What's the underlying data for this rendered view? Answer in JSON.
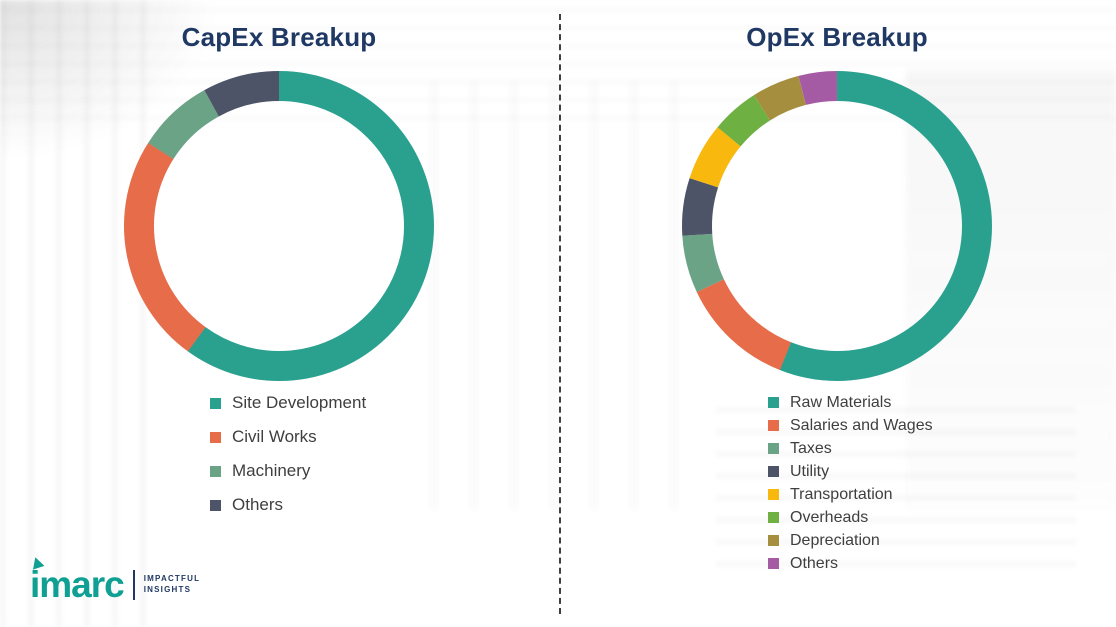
{
  "page": {
    "left_title": "CapEx Breakup",
    "right_title": "OpEx Breakup"
  },
  "chart_data": [
    {
      "type": "pie",
      "donut": true,
      "title": "CapEx Breakup",
      "labels": [
        "Site Development",
        "Civil Works",
        "Machinery",
        "Others"
      ],
      "values": [
        60,
        24,
        8,
        8
      ],
      "colors": [
        "#2AA18F",
        "#E66C4A",
        "#6BA387",
        "#4D5468"
      ],
      "legend_position": "bottom",
      "start_angle": "top",
      "direction": "clockwise",
      "title_color": "#1F3864"
    },
    {
      "type": "pie",
      "donut": true,
      "title": "OpEx Breakup",
      "labels": [
        "Raw Materials",
        "Salaries and Wages",
        "Taxes",
        "Utility",
        "Transportation",
        "Overheads",
        "Depreciation",
        "Others"
      ],
      "values": [
        56,
        12,
        6,
        6,
        6,
        5,
        5,
        4
      ],
      "colors": [
        "#2AA18F",
        "#E66C4A",
        "#6BA387",
        "#4D5468",
        "#F8B80E",
        "#6FB043",
        "#A58F3E",
        "#A55BA4"
      ],
      "legend_position": "bottom",
      "start_angle": "top",
      "direction": "clockwise",
      "title_color": "#1F3864"
    }
  ],
  "logo": {
    "brand": "imarc",
    "tagline_line1": "IMPACTFUL",
    "tagline_line2": "INSIGHTS",
    "brand_color": "#0FA093"
  }
}
